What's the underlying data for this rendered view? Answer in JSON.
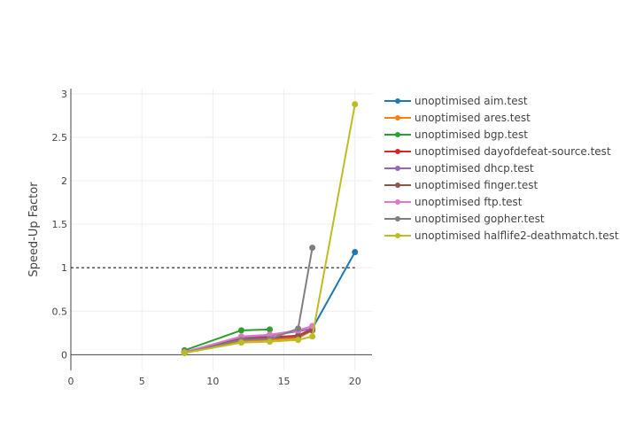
{
  "chart_data": {
    "type": "line",
    "title": "",
    "xlabel": "",
    "ylabel": "Speed-Up Factor",
    "xlim": [
      0,
      21.2
    ],
    "ylim": [
      -0.18,
      3.06
    ],
    "x_ticks": [
      0,
      5,
      10,
      15,
      20
    ],
    "x_tick_labels": [
      "0",
      "5",
      "10",
      "15",
      "20"
    ],
    "y_ticks": [
      0,
      0.5,
      1,
      1.5,
      2,
      2.5,
      3
    ],
    "y_tick_labels": [
      "0",
      "0.5",
      "1",
      "1.5",
      "2",
      "2.5",
      "3"
    ],
    "grid": true,
    "legend_position": "right",
    "reference_line": {
      "y": 1,
      "style": "dashed",
      "color": "#000000"
    },
    "series": [
      {
        "name": "unoptimised aim.test",
        "color": "#1f77b4",
        "points": [
          [
            8,
            0.03
          ],
          [
            12,
            0.17
          ],
          [
            14,
            0.18
          ],
          [
            16,
            0.2
          ],
          [
            17,
            0.3
          ],
          [
            20,
            1.18
          ]
        ]
      },
      {
        "name": "unoptimised ares.test",
        "color": "#ff7f0e",
        "points": [
          [
            8,
            0.02
          ],
          [
            12,
            0.16
          ],
          [
            14,
            0.17
          ],
          [
            16,
            0.19
          ],
          [
            17,
            0.28
          ]
        ]
      },
      {
        "name": "unoptimised bgp.test",
        "color": "#2ca02c",
        "points": [
          [
            8,
            0.05
          ],
          [
            12,
            0.28
          ],
          [
            14,
            0.29
          ]
        ]
      },
      {
        "name": "unoptimised dayofdefeat-source.test",
        "color": "#d62728",
        "points": [
          [
            8,
            0.03
          ],
          [
            12,
            0.19
          ],
          [
            14,
            0.2
          ],
          [
            16,
            0.22
          ],
          [
            17,
            0.3
          ]
        ]
      },
      {
        "name": "unoptimised dhcp.test",
        "color": "#9467bd",
        "points": [
          [
            8,
            0.03
          ],
          [
            12,
            0.2
          ],
          [
            14,
            0.22
          ],
          [
            16,
            0.27
          ],
          [
            17,
            0.3
          ]
        ]
      },
      {
        "name": "unoptimised finger.test",
        "color": "#8c564b",
        "points": [
          [
            8,
            0.03
          ],
          [
            12,
            0.18
          ],
          [
            14,
            0.19
          ],
          [
            16,
            0.21
          ],
          [
            17,
            0.28
          ]
        ]
      },
      {
        "name": "unoptimised ftp.test",
        "color": "#e377c2",
        "points": [
          [
            8,
            0.03
          ],
          [
            12,
            0.21
          ],
          [
            14,
            0.23
          ],
          [
            16,
            0.28
          ],
          [
            17,
            0.33
          ]
        ]
      },
      {
        "name": "unoptimised gopher.test",
        "color": "#7f7f7f",
        "points": [
          [
            8,
            0.02
          ],
          [
            12,
            0.17
          ],
          [
            14,
            0.18
          ],
          [
            16,
            0.3
          ],
          [
            17,
            1.23
          ]
        ]
      },
      {
        "name": "unoptimised halflife2-deathmatch.test",
        "color": "#bcbd22",
        "points": [
          [
            8,
            0.02
          ],
          [
            12,
            0.14
          ],
          [
            14,
            0.15
          ],
          [
            16,
            0.17
          ],
          [
            17,
            0.21
          ],
          [
            20,
            2.88
          ]
        ]
      }
    ]
  }
}
